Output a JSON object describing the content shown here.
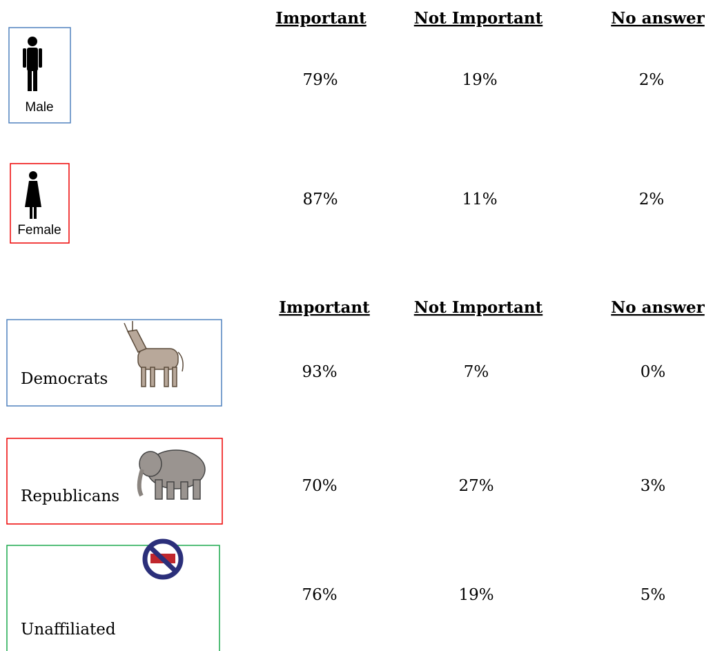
{
  "gender_table": {
    "headers": [
      "Important",
      "Not Important",
      "No answer"
    ],
    "rows": [
      {
        "label": "Male",
        "values": [
          "79%",
          "19%",
          "2%"
        ]
      },
      {
        "label": "Female",
        "values": [
          "87%",
          "11%",
          "2%"
        ]
      }
    ]
  },
  "party_table": {
    "headers": [
      "Important",
      "Not Important",
      "No answer"
    ],
    "rows": [
      {
        "label": "Democrats",
        "values": [
          "93%",
          "7%",
          "0%"
        ]
      },
      {
        "label": "Republicans",
        "values": [
          "70%",
          "27%",
          "3%"
        ]
      },
      {
        "label": "Unaffiliated",
        "values": [
          "76%",
          "19%",
          "5%"
        ]
      }
    ]
  }
}
